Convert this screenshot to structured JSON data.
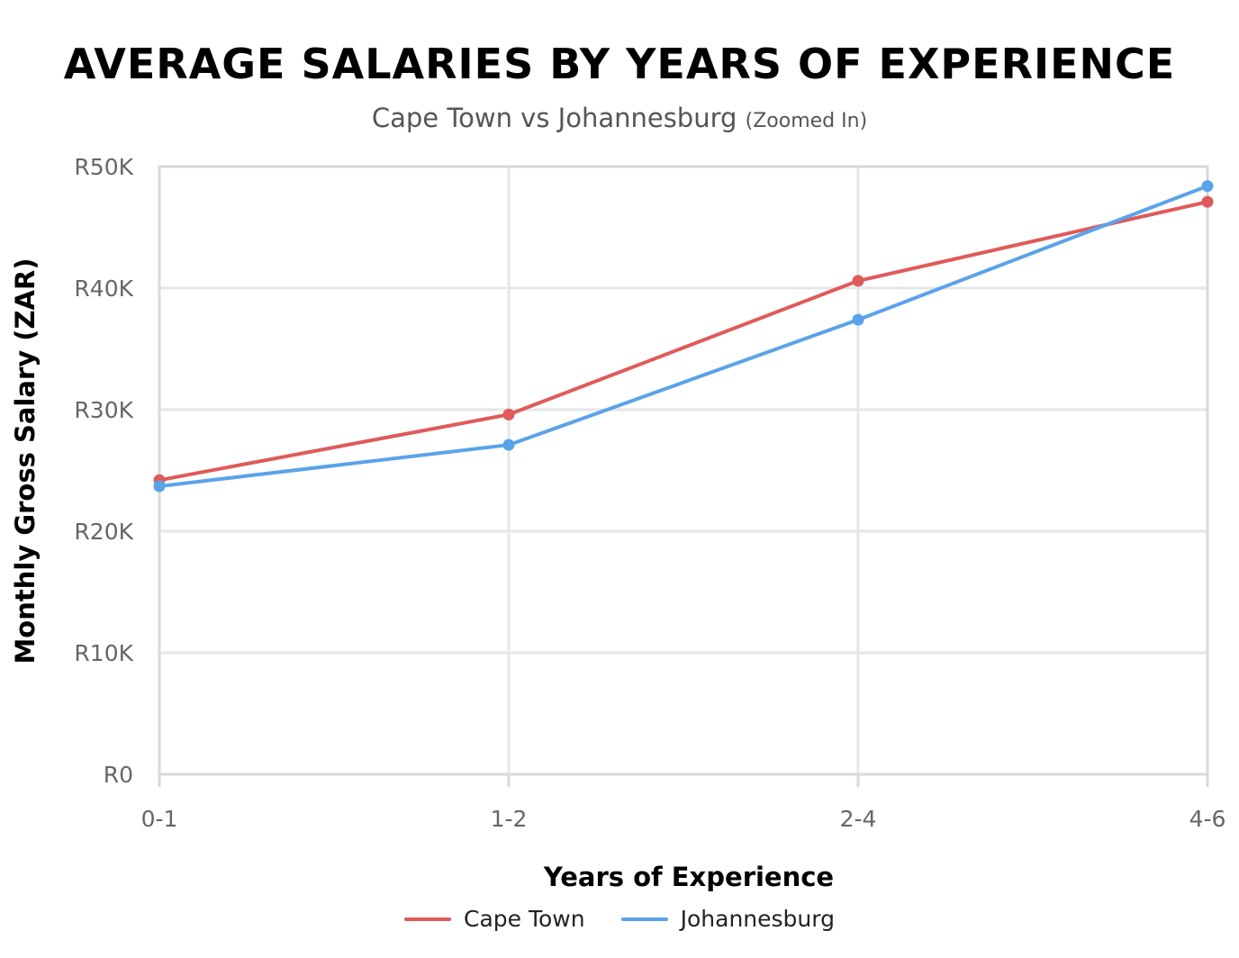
{
  "chart_data": {
    "type": "line",
    "title": "AVERAGE SALARIES BY YEARS OF EXPERIENCE",
    "subtitle": "Cape Town vs Johannesburg",
    "subtitle_note": "(Zoomed In)",
    "xlabel": "Years of Experience",
    "ylabel": "Monthly Gross Salary (ZAR)",
    "categories": [
      "0-1",
      "1-2",
      "2-4",
      "4-6"
    ],
    "ylim": [
      0,
      50000
    ],
    "yticks": [
      0,
      10000,
      20000,
      30000,
      40000,
      50000
    ],
    "ytick_labels": [
      "R0",
      "R10K",
      "R20K",
      "R30K",
      "R40K",
      "R50K"
    ],
    "grid": true,
    "legend_position": "bottom",
    "series": [
      {
        "name": "Cape Town",
        "color": "#e05a5a",
        "values": [
          24200,
          29600,
          40600,
          47100
        ]
      },
      {
        "name": "Johannesburg",
        "color": "#5aa3ea",
        "values": [
          23700,
          27100,
          37400,
          48400
        ]
      }
    ]
  }
}
